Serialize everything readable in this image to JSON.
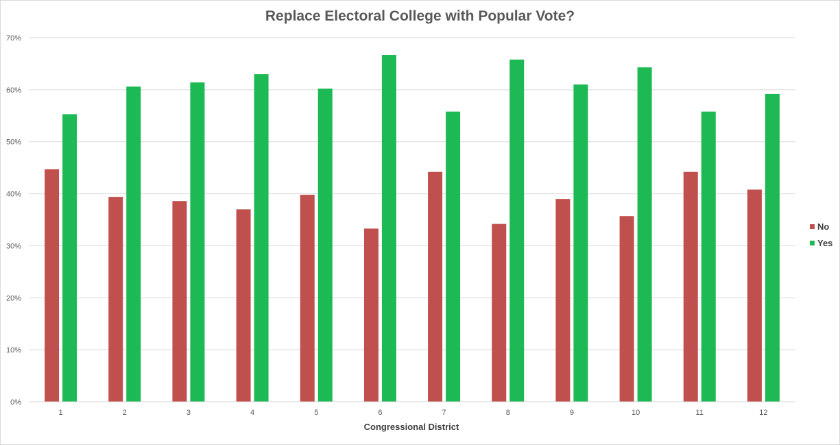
{
  "chart_data": {
    "type": "bar",
    "title": "Replace Electoral College with Popular Vote?",
    "xlabel": "Congressional District",
    "ylabel": "",
    "categories": [
      "1",
      "2",
      "3",
      "4",
      "5",
      "6",
      "7",
      "8",
      "9",
      "10",
      "11",
      "12"
    ],
    "series": [
      {
        "name": "No",
        "color": "#c0504d",
        "values": [
          44.7,
          39.4,
          38.6,
          37.0,
          39.8,
          33.3,
          44.2,
          34.2,
          39.0,
          35.7,
          44.2,
          40.8
        ]
      },
      {
        "name": "Yes",
        "color": "#1db954",
        "values": [
          55.3,
          60.6,
          61.4,
          63.0,
          60.2,
          66.7,
          55.8,
          65.8,
          61.0,
          64.3,
          55.8,
          59.2
        ]
      }
    ],
    "ylim": [
      0,
      70
    ],
    "yticks": [
      "0%",
      "10%",
      "20%",
      "30%",
      "40%",
      "50%",
      "60%",
      "70%"
    ],
    "grid": true,
    "legend_position": "right"
  }
}
